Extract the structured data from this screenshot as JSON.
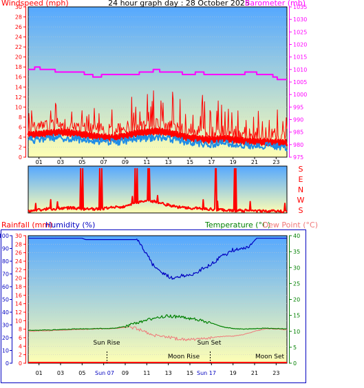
{
  "top": {
    "title": "24 hour graph day : 28 October 2025",
    "left_label": "Windspeed (mph)",
    "right_label": "Barometer (mb)"
  },
  "bottom": {
    "rain_label": "Rainfall (mm)",
    "humidity_label": "Humidity (%)",
    "temp_label": "Temperature (°C)",
    "dew_label": "Dew Point (°C)",
    "sunrise": "Sun Rise",
    "sunset": "Sun Set",
    "moonrise": "Moon Rise",
    "moonset": "Moon Set",
    "sunrise_time": "Sun 07",
    "sunset_time": "Sun 17"
  },
  "direction_labels": [
    "S",
    "E",
    "N",
    "W",
    "S"
  ],
  "x_tick_labels": [
    "01",
    "03",
    "05",
    "07",
    "09",
    "11",
    "13",
    "15",
    "17",
    "19",
    "21",
    "23"
  ],
  "colors": {
    "wind": "#ff0000",
    "gust": "#ff0000",
    "avg": "#1e8ce6",
    "baro": "#ff00ff",
    "humidity": "#0000c0",
    "temp": "#008000",
    "dew": "#f07878",
    "rain": "#ff0000",
    "axis_red": "#ff0000",
    "axis_magenta": "#ff00ff",
    "axis_blue": "#0000c0",
    "axis_green": "#008000",
    "grad_top": "#55a8ff",
    "grad_bottom": "#ffffb4"
  },
  "chart_data": [
    {
      "type": "line",
      "id": "wind_baro",
      "title": "24 hour graph day : 28 October 2025",
      "ylabel": "Windspeed (mph)",
      "ylabel_right": "Barometer (mb)",
      "ylim": [
        0,
        30
      ],
      "ylim_right": [
        975,
        1035
      ],
      "xlim": [
        0,
        24
      ],
      "yticks": [
        0,
        2,
        4,
        6,
        8,
        10,
        12,
        14,
        16,
        18,
        20,
        22,
        24,
        26,
        28,
        30
      ],
      "yticks_right": [
        975,
        980,
        985,
        990,
        995,
        1000,
        1005,
        1010,
        1015,
        1020,
        1025,
        1030,
        1035
      ],
      "series": [
        {
          "name": "Barometer",
          "axis": "right",
          "x": [
            0,
            0.6,
            1.1,
            1.6,
            2.5,
            3.8,
            5.2,
            6.0,
            6.8,
            8.0,
            8.3,
            9.0,
            10.3,
            10.6,
            11.6,
            12.2,
            12.8,
            14.3,
            15.0,
            15.5,
            16.3,
            16.8,
            17.8,
            19.0,
            19.6,
            20.1,
            21.2,
            22.0,
            22.7,
            23.1,
            24.0
          ],
          "y": [
            1010,
            1011,
            1010,
            1010,
            1009,
            1009,
            1008,
            1007,
            1008,
            1008,
            1008,
            1008,
            1009,
            1009,
            1010,
            1009,
            1009,
            1008,
            1008,
            1009,
            1008,
            1008,
            1008,
            1008,
            1008,
            1009,
            1008,
            1008,
            1007,
            1006,
            1006
          ]
        },
        {
          "name": "Average wind",
          "axis": "left",
          "x": [
            0,
            1,
            2,
            3,
            4,
            5,
            6,
            7,
            8,
            9,
            10,
            11,
            12,
            13,
            14,
            15,
            16,
            17,
            18,
            19,
            20,
            21,
            22,
            23,
            24
          ],
          "y": [
            3.5,
            3.4,
            3.8,
            3.9,
            3.6,
            3.5,
            3.3,
            3.1,
            3.0,
            3.2,
            3.6,
            3.8,
            3.9,
            3.7,
            3.3,
            2.9,
            2.7,
            2.6,
            2.8,
            2.7,
            2.4,
            2.3,
            2.3,
            2.2,
            1.8
          ]
        },
        {
          "name": "Wind gust",
          "axis": "left",
          "x": [
            0,
            1,
            2,
            3,
            4,
            5,
            6,
            7,
            8,
            9,
            10,
            11,
            12,
            13,
            14,
            15,
            16,
            17,
            18,
            19,
            20,
            21,
            22,
            23,
            24
          ],
          "y": [
            5.6,
            5.8,
            6.0,
            6.2,
            6.0,
            5.7,
            5.4,
            5.1,
            5.0,
            5.4,
            6.0,
            6.2,
            6.4,
            6.1,
            5.5,
            5.0,
            4.8,
            4.6,
            4.9,
            4.7,
            4.4,
            4.3,
            4.2,
            4.1,
            4.0
          ]
        }
      ]
    },
    {
      "type": "line",
      "id": "wind_direction",
      "ylim": [
        0,
        360
      ],
      "xlim": [
        0,
        24
      ],
      "series": [
        {
          "name": "Wind direction",
          "x": [
            0,
            1,
            2,
            3,
            4,
            5,
            6,
            7,
            8,
            9,
            10,
            11,
            12,
            13,
            14,
            15,
            16,
            17,
            18,
            19,
            20,
            21,
            22,
            23,
            24
          ],
          "y": [
            12,
            24,
            32,
            35,
            40,
            30,
            28,
            34,
            48,
            46,
            80,
            96,
            84,
            60,
            44,
            40,
            32,
            28,
            24,
            20,
            18,
            16,
            14,
            12,
            12
          ]
        }
      ]
    },
    {
      "type": "line",
      "id": "temp_humidity_rain",
      "ylabel": "Rainfall (mm) / Humidity (%)",
      "ylabel_right": "Temperature (°C) / Dew Point (°C)",
      "ylim_rain": [
        0,
        30
      ],
      "ylim_humidity": [
        0,
        100
      ],
      "ylim_temp": [
        0,
        40
      ],
      "xlim": [
        0,
        24
      ],
      "yticks_rain": [
        0,
        2,
        4,
        6,
        8,
        10,
        12,
        14,
        16,
        18,
        20,
        22,
        24,
        26,
        28,
        30
      ],
      "yticks_humidity": [
        0,
        10,
        20,
        30,
        40,
        50,
        60,
        70,
        80,
        90,
        100
      ],
      "yticks_temp": [
        0,
        5,
        10,
        15,
        20,
        25,
        30,
        35,
        40
      ],
      "series": [
        {
          "name": "Humidity",
          "axis": "humidity",
          "x": [
            0,
            5.0,
            5.3,
            10.1,
            10.8,
            11.5,
            12.3,
            13.0,
            13.5,
            14.5,
            15.5,
            16.2,
            17.0,
            18.0,
            19.0,
            20.0,
            20.5,
            21.2,
            24.0
          ],
          "y": [
            98,
            98,
            97,
            97,
            88,
            78,
            72,
            68,
            67,
            69,
            71,
            74,
            78,
            84,
            89,
            90,
            92,
            98,
            98
          ]
        },
        {
          "name": "Temperature",
          "axis": "temp",
          "x": [
            0,
            2.0,
            4.0,
            6.0,
            8.0,
            9.0,
            10.0,
            11.0,
            12.0,
            13.0,
            14.0,
            15.0,
            16.0,
            17.0,
            18.0,
            19.0,
            20.0,
            21.0,
            22.0,
            23.0,
            24.0
          ],
          "y": [
            10.3,
            10.4,
            10.7,
            10.8,
            11.0,
            11.5,
            12.5,
            13.5,
            14.2,
            14.8,
            14.5,
            14.0,
            13.5,
            12.6,
            11.4,
            10.9,
            10.7,
            10.8,
            11.0,
            10.9,
            10.7
          ]
        },
        {
          "name": "Dew Point",
          "axis": "temp",
          "x": [
            0,
            2.0,
            4.0,
            6.0,
            8.0,
            9.0,
            10.0,
            11.0,
            12.0,
            13.0,
            14.0,
            15.0,
            16.0,
            17.0,
            18.0,
            19.0,
            20.0,
            21.0,
            22.0,
            23.0,
            24.0
          ],
          "y": [
            10.0,
            10.2,
            10.5,
            10.7,
            10.9,
            11.2,
            11.0,
            9.5,
            8.5,
            8.2,
            7.5,
            7.3,
            7.5,
            8.0,
            8.4,
            8.5,
            9.0,
            10.0,
            10.8,
            10.7,
            10.5
          ]
        },
        {
          "name": "Rainfall",
          "axis": "rain",
          "x": [
            0,
            24
          ],
          "y": [
            0,
            0
          ]
        }
      ]
    }
  ]
}
